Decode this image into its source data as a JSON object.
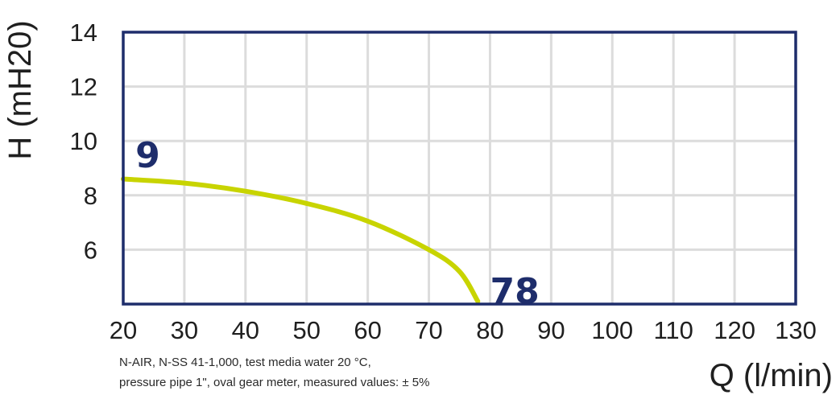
{
  "chart_data": {
    "type": "line",
    "xlabel": "Q (l/min)",
    "ylabel": "H (mH20)",
    "xlim": [
      20,
      130
    ],
    "ylim": [
      4,
      14
    ],
    "x_ticks": [
      "20",
      "30",
      "40",
      "50",
      "60",
      "70",
      "80",
      "90",
      "100",
      "110",
      "120",
      "130"
    ],
    "y_ticks": [
      "14",
      "12",
      "10",
      "8",
      "6"
    ],
    "grid": true,
    "series": [
      {
        "color": "#c8d400",
        "points": [
          {
            "x": 20,
            "y": 8.6
          },
          {
            "x": 30,
            "y": 8.45
          },
          {
            "x": 40,
            "y": 8.15
          },
          {
            "x": 50,
            "y": 7.7
          },
          {
            "x": 60,
            "y": 7.05
          },
          {
            "x": 70,
            "y": 6.0
          },
          {
            "x": 75,
            "y": 5.2
          },
          {
            "x": 78,
            "y": 4.1
          }
        ]
      }
    ],
    "annotations": [
      {
        "text": "9",
        "x": 22,
        "y": 9.5
      },
      {
        "text": "78",
        "x": 80,
        "y": 4.5
      }
    ],
    "notes": [
      "N-AIR, N-SS 41-1,000, test media water 20 °C,",
      "pressure pipe 1\", oval gear meter, measured values: ± 5%"
    ],
    "colors": {
      "frame": "#1e2d6b",
      "grid": "#dcdcdc",
      "curve": "#c8d400",
      "annotation": "#1e2d6b"
    }
  }
}
